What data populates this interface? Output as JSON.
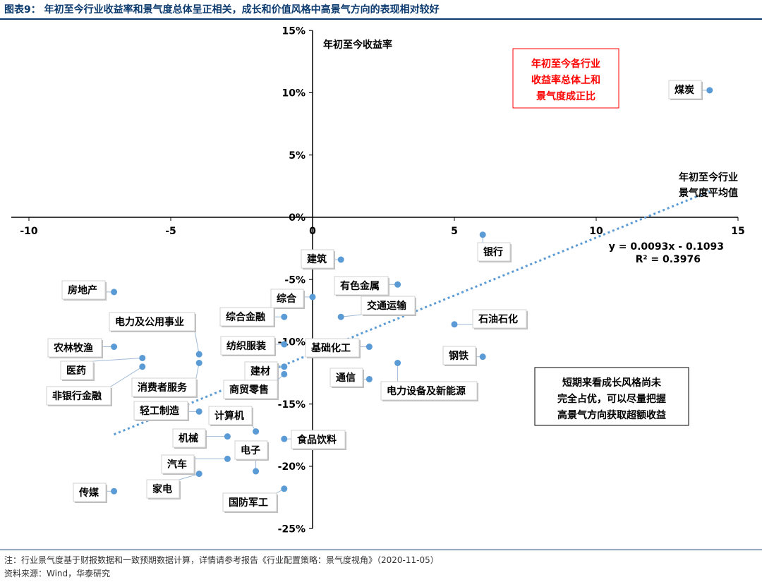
{
  "title": "图表9：  年初至今行业收益率和景气度总体呈正相关，成长和价值风格中高景气方向的表现相对较好",
  "note": "注：行业景气度基于财报数据和一致预期数据计算，详情请参考报告《行业配置策略：景气度视角》（2020-11-05）",
  "source": "资料来源：Wind，华泰研究",
  "chart_data": {
    "type": "scatter",
    "ylabel": "年初至今收益率",
    "xlim": [
      -10,
      15
    ],
    "ylim": [
      -25,
      15
    ],
    "x_ticks": [
      -10,
      -5,
      0,
      5,
      10,
      15
    ],
    "x_tick_labels": [
      "-10",
      "-5",
      "0",
      "5",
      "10",
      "15"
    ],
    "y_ticks": [
      15,
      10,
      5,
      0,
      -5,
      -10,
      -15,
      -20,
      -25
    ],
    "y_tick_labels": [
      "15%",
      "10%",
      "5%",
      "0%",
      "-5%",
      "-10%",
      "-15%",
      "-20%",
      "-25%"
    ],
    "grid": false,
    "marker_color": "#5b9bd5",
    "trendline": {
      "equation": "y = 0.0093x - 0.1093",
      "r2": "R² = 0.3976",
      "slope": 0.93,
      "intercept": -10.93,
      "x_range": [
        -7,
        14
      ],
      "color": "#5b9bd5"
    },
    "points": [
      {
        "name": "煤炭",
        "x": 14.0,
        "y": 10.2
      },
      {
        "name": "银行",
        "x": 6.0,
        "y": -1.4
      },
      {
        "name": "建筑",
        "x": 1.0,
        "y": -3.4
      },
      {
        "name": "有色金属",
        "x": 3.0,
        "y": -5.4
      },
      {
        "name": "综合",
        "x": 0.0,
        "y": -6.4
      },
      {
        "name": "交通运输",
        "x": 1.0,
        "y": -8.0
      },
      {
        "name": "综合金融",
        "x": -1.0,
        "y": -8.0
      },
      {
        "name": "石油石化",
        "x": 5.0,
        "y": -8.6
      },
      {
        "name": "房地产",
        "x": -7.0,
        "y": -6.0
      },
      {
        "name": "纺织服装",
        "x": -1.0,
        "y": -10.2
      },
      {
        "name": "基础化工",
        "x": 2.0,
        "y": -10.4
      },
      {
        "name": "钢铁",
        "x": 6.0,
        "y": -11.2
      },
      {
        "name": "农林牧渔",
        "x": -7.0,
        "y": -10.4
      },
      {
        "name": "电力及公用事业",
        "x": -4.0,
        "y": -11.0
      },
      {
        "name": "医药",
        "x": -6.0,
        "y": -11.3
      },
      {
        "name": "电力设备及新能源",
        "x": 3.0,
        "y": -11.7
      },
      {
        "name": "非银行金融",
        "x": -6.0,
        "y": -12.0
      },
      {
        "name": "消费者服务",
        "x": -4.0,
        "y": -11.7
      },
      {
        "name": "建材",
        "x": -1.0,
        "y": -12.0
      },
      {
        "name": "商贸零售",
        "x": -1.0,
        "y": -12.6
      },
      {
        "name": "通信",
        "x": 2.0,
        "y": -13.0
      },
      {
        "name": "轻工制造",
        "x": -4.0,
        "y": -15.6
      },
      {
        "name": "计算机",
        "x": -2.0,
        "y": -17.2
      },
      {
        "name": "机械",
        "x": -3.0,
        "y": -17.6
      },
      {
        "name": "食品饮料",
        "x": -1.0,
        "y": -17.8
      },
      {
        "name": "汽车",
        "x": -3.0,
        "y": -19.4
      },
      {
        "name": "电子",
        "x": -2.0,
        "y": -20.4
      },
      {
        "name": "家电",
        "x": -4.0,
        "y": -20.6
      },
      {
        "name": "传媒",
        "x": -7.0,
        "y": -22.0
      },
      {
        "name": "国防军工",
        "x": -1.0,
        "y": -21.8
      }
    ],
    "annotations": [
      {
        "id": "trend-label",
        "lines": [
          "年初至今行业",
          "景气度平均值"
        ],
        "color": "#000000",
        "boxed": false
      },
      {
        "id": "red-box",
        "lines": [
          "年初至今各行业",
          "收益率总体上和",
          "景气度成正比"
        ],
        "color": "#ff0000",
        "boxed": true
      },
      {
        "id": "black-box",
        "lines": [
          "短期来看成长风格尚未",
          "完全占优，可以尽量把握",
          "高景气方向获取超额收益"
        ],
        "color": "#000000",
        "boxed": true
      }
    ]
  }
}
